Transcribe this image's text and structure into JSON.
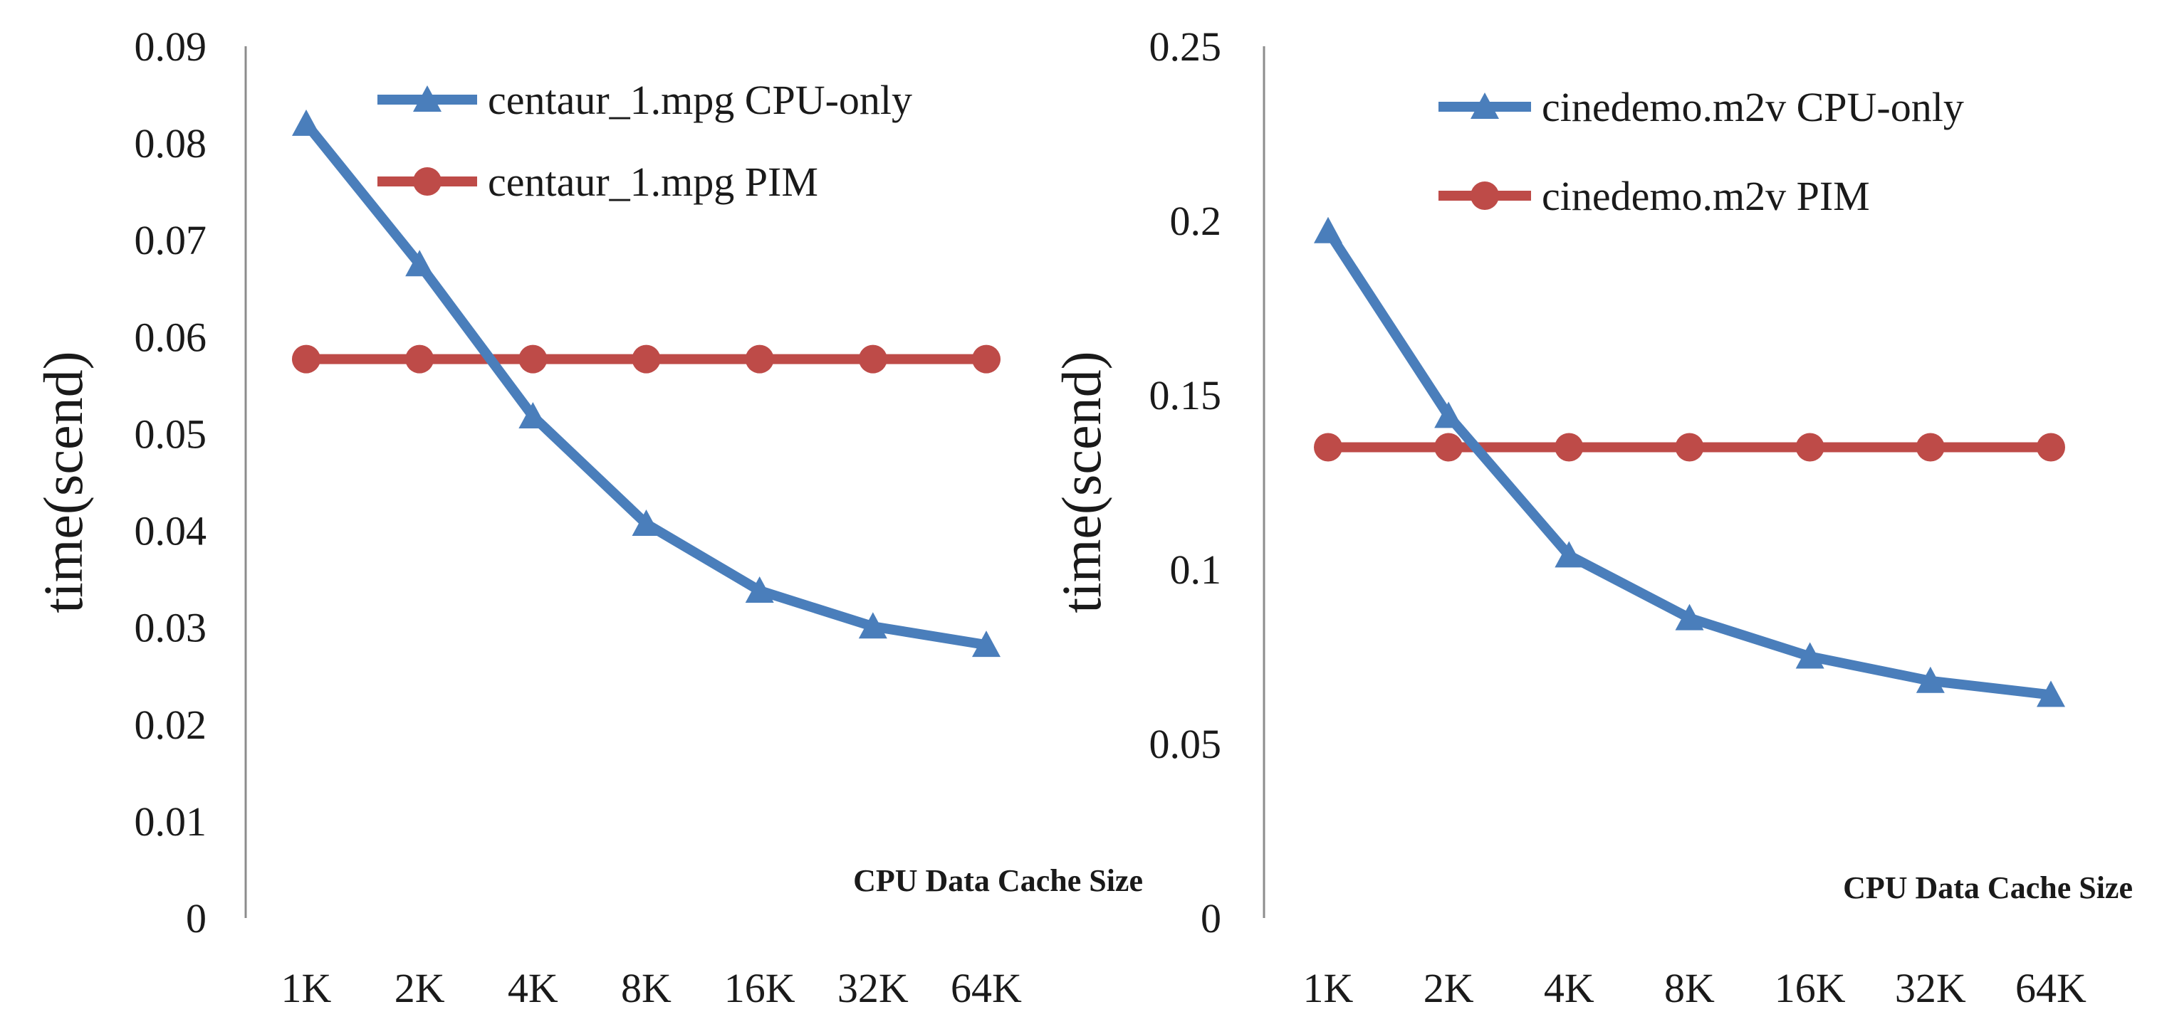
{
  "chart_data": [
    {
      "type": "line",
      "title": "",
      "ylabel": "time(scend)",
      "xlabel": "CPU Data Cache Size",
      "categories": [
        "1K",
        "2K",
        "4K",
        "8K",
        "16K",
        "32K",
        "64K"
      ],
      "ylim": [
        0,
        0.09
      ],
      "yticks": [
        0,
        0.01,
        0.02,
        0.03,
        0.04,
        0.05,
        0.06,
        0.07,
        0.08,
        0.09
      ],
      "ytick_labels": [
        "0",
        "0.01",
        "0.02",
        "0.03",
        "0.04",
        "0.05",
        "0.06",
        "0.07",
        "0.08",
        "0.09"
      ],
      "grid": false,
      "legend_position": "top-right",
      "series": [
        {
          "name": "centaur_1.mpg CPU-only",
          "marker": "triangle",
          "color": "#4a7ebb",
          "values": [
            0.082,
            0.0675,
            0.0518,
            0.0407,
            0.0338,
            0.0301,
            0.0282
          ]
        },
        {
          "name": "centaur_1.mpg PIM",
          "marker": "circle",
          "color": "#be4b48",
          "values": [
            0.0577,
            0.0577,
            0.0577,
            0.0577,
            0.0577,
            0.0577,
            0.0577
          ]
        }
      ]
    },
    {
      "type": "line",
      "title": "",
      "ylabel": "time(scend)",
      "xlabel": "CPU Data Cache Size",
      "categories": [
        "1K",
        "2K",
        "4K",
        "8K",
        "16K",
        "32K",
        "64K"
      ],
      "ylim": [
        0,
        0.25
      ],
      "yticks": [
        0,
        0.05,
        0.1,
        0.15,
        0.2,
        0.25
      ],
      "ytick_labels": [
        "0",
        "0.05",
        "0.1",
        "0.15",
        "0.2",
        "0.25"
      ],
      "grid": false,
      "legend_position": "top-right",
      "series": [
        {
          "name": "cinedemo.m2v CPU-only",
          "marker": "triangle",
          "color": "#4a7ebb",
          "values": [
            0.197,
            0.144,
            0.104,
            0.086,
            0.075,
            0.068,
            0.064
          ]
        },
        {
          "name": "cinedemo.m2v PIM",
          "marker": "circle",
          "color": "#be4b48",
          "values": [
            0.135,
            0.135,
            0.135,
            0.135,
            0.135,
            0.135,
            0.135
          ]
        }
      ]
    }
  ]
}
